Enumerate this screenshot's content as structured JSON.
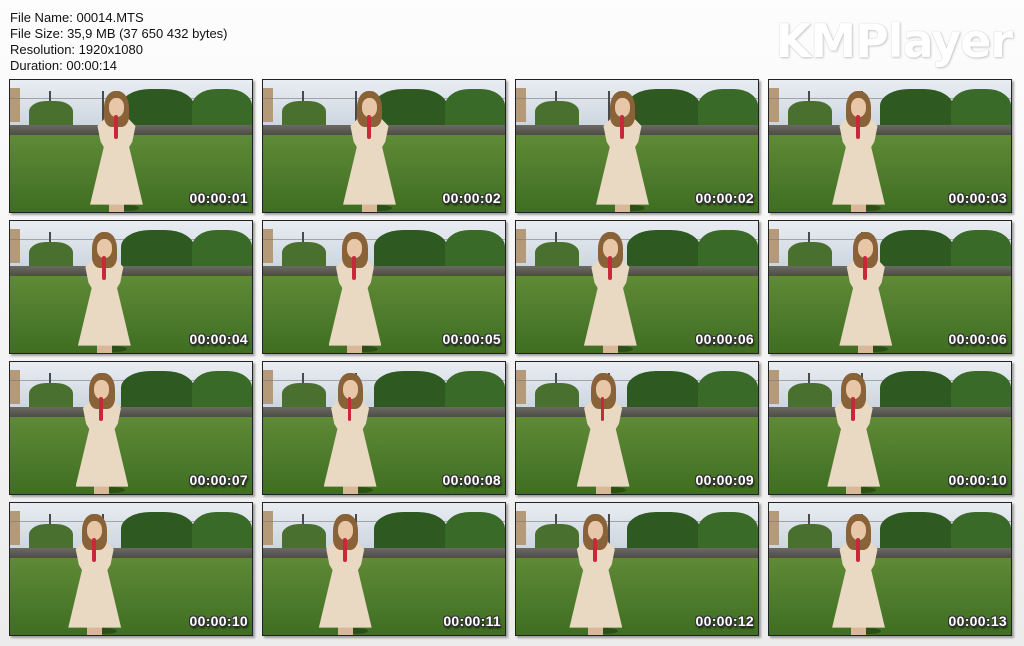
{
  "info": {
    "file_name": "File Name: 00014.MTS",
    "file_size": "File Size: 35,9 MB (37 650 432 bytes)",
    "resolution": "Resolution: 1920x1080",
    "duration": "Duration: 00:00:14"
  },
  "logo": "KMPlayer",
  "thumbnails": [
    {
      "time": "00:00:01"
    },
    {
      "time": "00:00:02"
    },
    {
      "time": "00:00:02"
    },
    {
      "time": "00:00:03"
    },
    {
      "time": "00:00:04"
    },
    {
      "time": "00:00:05"
    },
    {
      "time": "00:00:06"
    },
    {
      "time": "00:00:06"
    },
    {
      "time": "00:00:07"
    },
    {
      "time": "00:00:08"
    },
    {
      "time": "00:00:09"
    },
    {
      "time": "00:00:10"
    },
    {
      "time": "00:00:10"
    },
    {
      "time": "00:00:11"
    },
    {
      "time": "00:00:12"
    },
    {
      "time": "00:00:13"
    }
  ]
}
